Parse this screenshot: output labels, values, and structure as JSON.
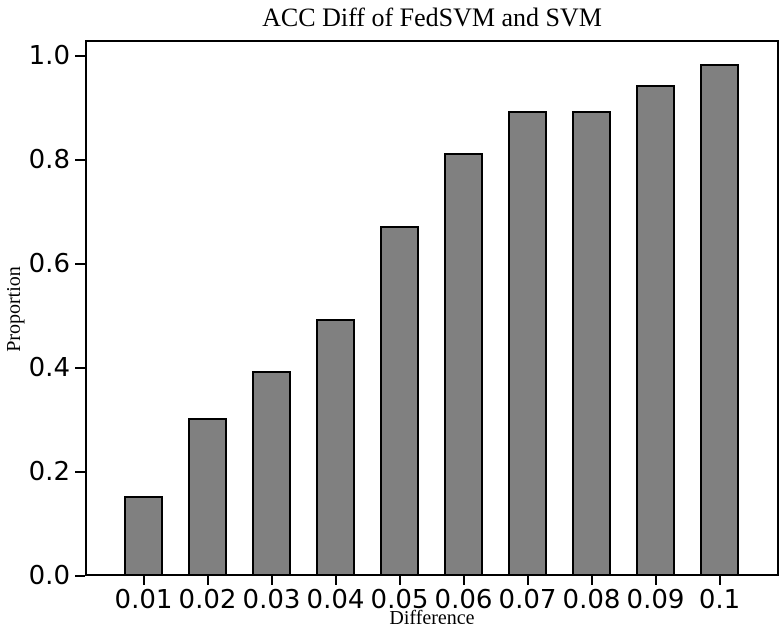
{
  "chart_data": {
    "type": "bar",
    "title": "ACC Diff of FedSVM and SVM",
    "xlabel": "Difference",
    "ylabel": "Proportion",
    "categories": [
      "0.01",
      "0.02",
      "0.03",
      "0.04",
      "0.05",
      "0.06",
      "0.07",
      "0.08",
      "0.09",
      "0.1"
    ],
    "values": [
      0.15,
      0.3,
      0.39,
      0.49,
      0.67,
      0.81,
      0.89,
      0.89,
      0.94,
      0.98
    ],
    "ytick_values": [
      0.0,
      0.2,
      0.4,
      0.6,
      0.8,
      1.0
    ],
    "ytick_labels": [
      "0.0",
      "0.2",
      "0.4",
      "0.6",
      "0.8",
      "1.0"
    ],
    "ylim": [
      0,
      1.03
    ],
    "xlim_categories_padding": "numeric axis 0.01 to 0.1",
    "grid": false,
    "legend": null,
    "bar_color": "#808080",
    "bar_edge_color": "#000000",
    "axis_color": "#000000",
    "text_color": "#000000",
    "background_color": "#ffffff"
  }
}
